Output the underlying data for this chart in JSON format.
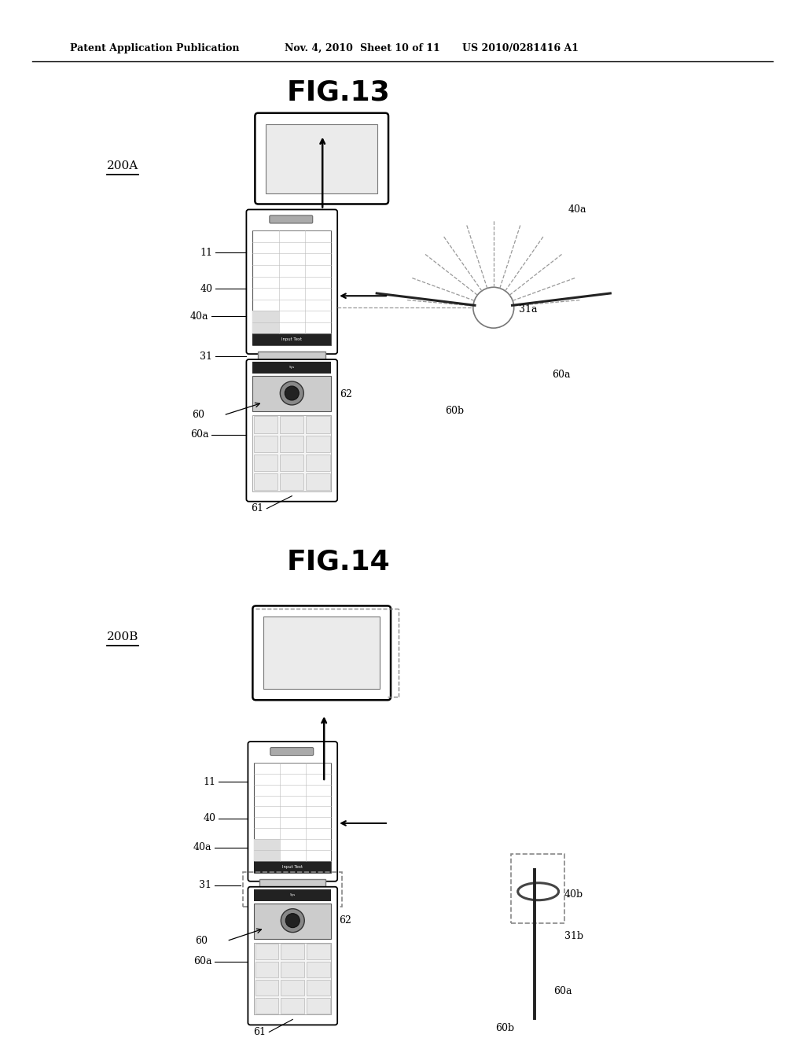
{
  "bg_color": "#ffffff",
  "header_text": "Patent Application Publication",
  "header_date": "Nov. 4, 2010",
  "header_sheet": "Sheet 10 of 11",
  "header_patent": "US 2010/0281416 A1",
  "fig13_title": "FIG.13",
  "fig14_title": "FIG.14",
  "label_200A": "200A",
  "label_200B": "200B",
  "text_color": "#000000",
  "line_color": "#000000"
}
